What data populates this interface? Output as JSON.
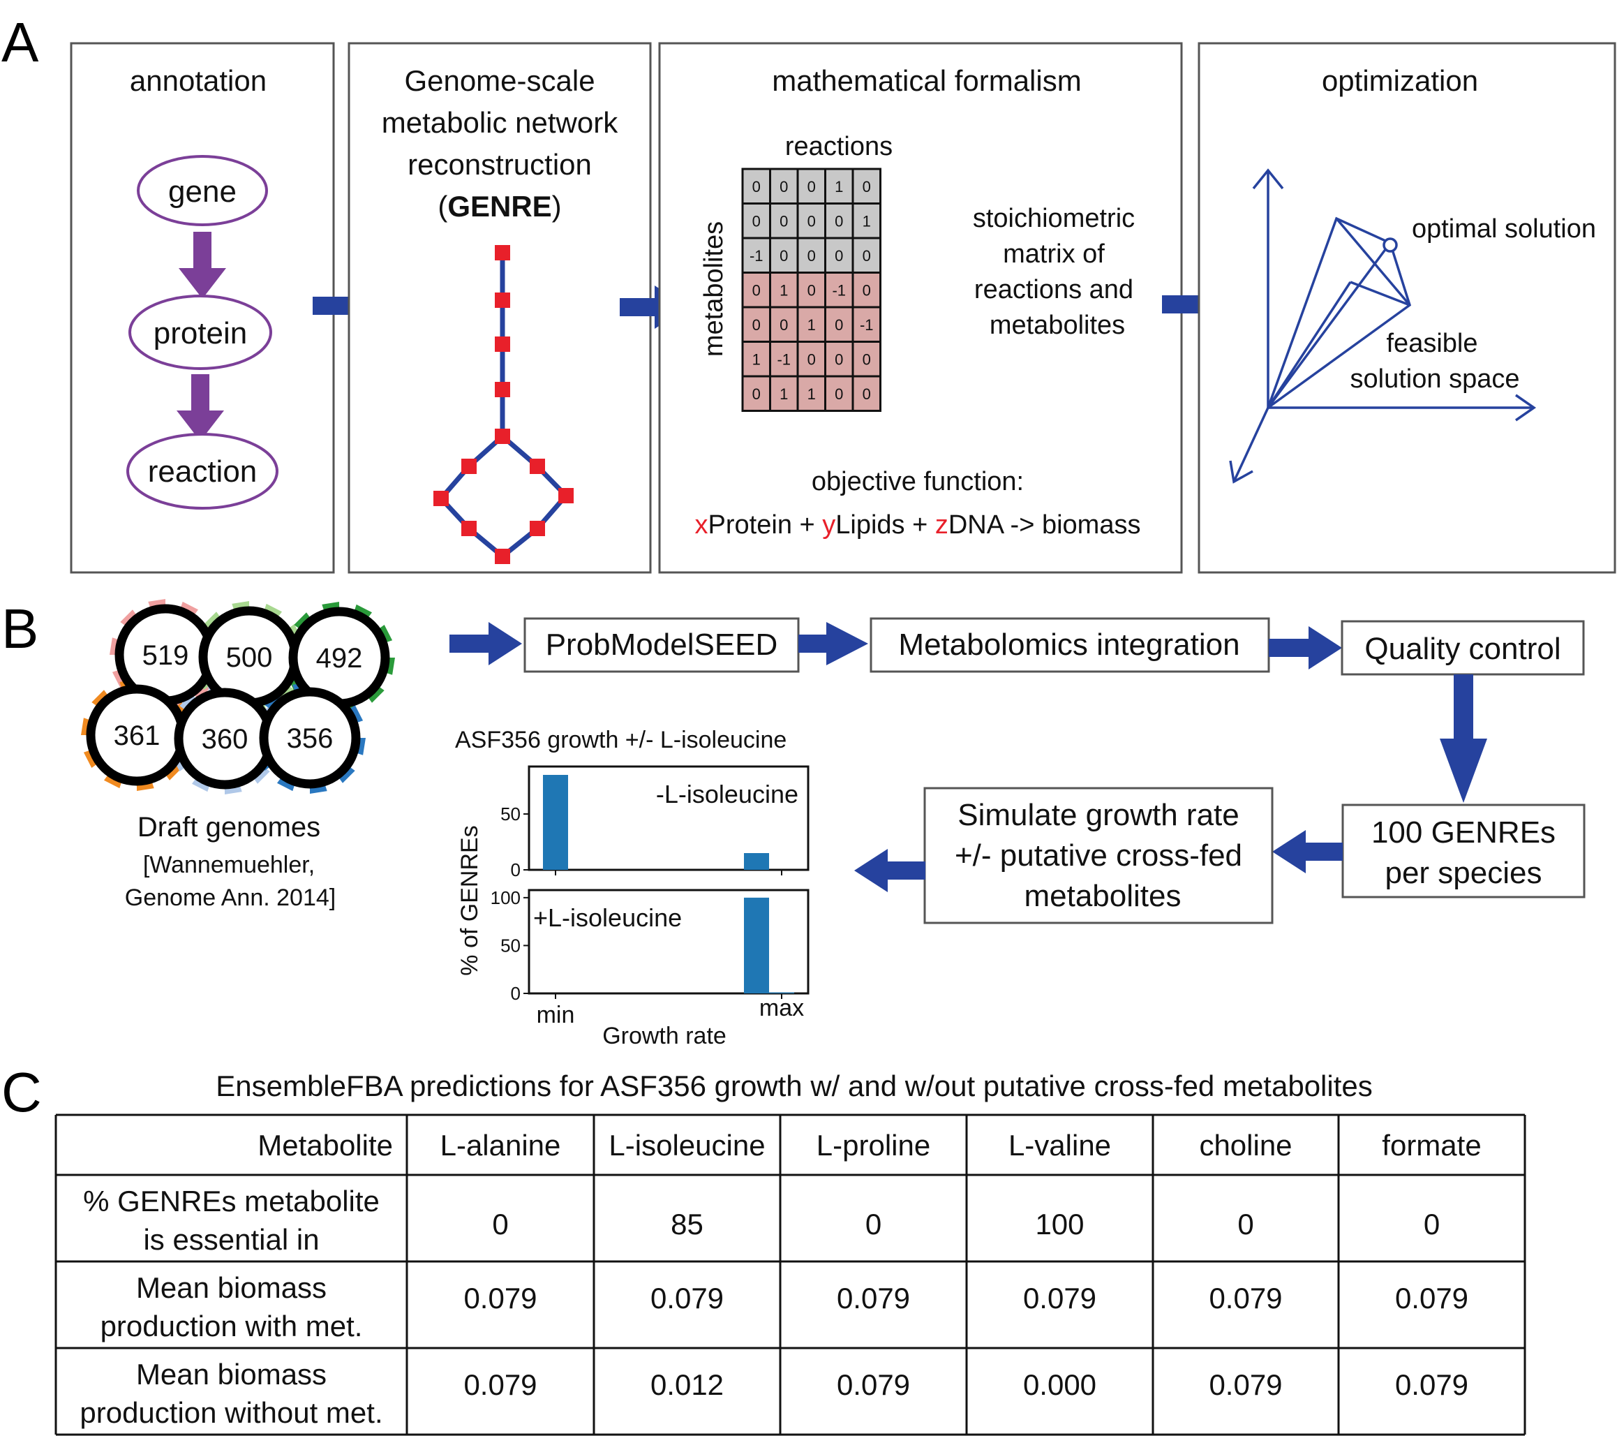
{
  "panel_labels": {
    "a": "A",
    "b": "B",
    "c": "C"
  },
  "panelA": {
    "annotation": {
      "title": "annotation",
      "gene": "gene",
      "protein": "protein",
      "reaction": "reaction"
    },
    "genre": {
      "line1": "Genome-scale",
      "line2": "metabolic network",
      "line3": "reconstruction",
      "line4_open": "(",
      "line4_bold": "GENRE",
      "line4_close": ")"
    },
    "math": {
      "title": "mathematical formalism",
      "reactions_label": "reactions",
      "metabolites_label": "metabolites",
      "matrix": [
        [
          "0",
          "0",
          "0",
          "1",
          "0"
        ],
        [
          "0",
          "0",
          "0",
          "0",
          "1"
        ],
        [
          "-1",
          "0",
          "0",
          "0",
          "0"
        ],
        [
          "0",
          "1",
          "0",
          "-1",
          "0"
        ],
        [
          "0",
          "0",
          "1",
          "0",
          "-1"
        ],
        [
          "1",
          "-1",
          "0",
          "0",
          "0"
        ],
        [
          "0",
          "1",
          "1",
          "0",
          "0"
        ]
      ],
      "matrix_row_colors": [
        "#c8c8c8",
        "#c8c8c8",
        "#c8c8c8",
        "#d9a9a7",
        "#d9a9a7",
        "#d9a9a7",
        "#d9a9a7"
      ],
      "desc": [
        "stoichiometric",
        "matrix of",
        "reactions and",
        "metabolites"
      ],
      "objective_label": "objective function:",
      "objective": {
        "x": "x",
        "protein": "Protein + ",
        "y": "y",
        "lipids": "Lipids + ",
        "z": "z",
        "dna": "DNA -> biomass"
      }
    },
    "optimization": {
      "title": "optimization",
      "optimal": "optimal solution",
      "feasible1": "feasible",
      "feasible2": "solution space"
    }
  },
  "panelB": {
    "genomes": [
      {
        "id": "519",
        "color": "#f0a0a0"
      },
      {
        "id": "500",
        "color": "#a8d890"
      },
      {
        "id": "492",
        "color": "#2a9a3a"
      },
      {
        "id": "361",
        "color": "#f08a20"
      },
      {
        "id": "360",
        "color": "#b0c8e8"
      },
      {
        "id": "356",
        "color": "#2a78c0"
      }
    ],
    "draft_label": "Draft genomes",
    "citation1": "[Wannemuehler,",
    "citation2": "Genome Ann. 2014]",
    "steps": {
      "probmodel": "ProbModelSEED",
      "metabolomics": "Metabolomics integration",
      "qc": "Quality control",
      "genres1": "100 GENREs",
      "genres2": "per species",
      "simulate1": "Simulate growth rate",
      "simulate2": "+/- putative cross-fed",
      "simulate3": "metabolites"
    }
  },
  "chart_data": {
    "type": "bar",
    "title": "ASF356 growth +/- L-isoleucine",
    "xlabel": "Growth rate",
    "ylabel": "% of GENREs",
    "x_tick_labels": [
      "min",
      "max"
    ],
    "color": "#1f77b4",
    "panels": [
      {
        "name": "-L-isoleucine",
        "ylim": [
          0,
          90
        ],
        "yticks": [
          "50",
          "0"
        ],
        "bars": [
          {
            "bin": 0,
            "value": 85
          },
          {
            "bin": 8,
            "value": 15
          }
        ]
      },
      {
        "name": "+L-isoleucine",
        "ylim": [
          0,
          105
        ],
        "yticks": [
          "100",
          "50",
          "0"
        ],
        "bars": [
          {
            "bin": 8,
            "value": 100
          },
          {
            "bin": 9,
            "value": 1
          }
        ]
      }
    ],
    "bins": 10
  },
  "panelC": {
    "title": "EnsembleFBA predictions for ASF356 growth w/ and w/out putative cross-fed metabolites",
    "header": {
      "label": "Metabolite",
      "cols": [
        "L-alanine",
        "L-isoleucine",
        "L-proline",
        "L-valine",
        "choline",
        "formate"
      ]
    },
    "rows": [
      {
        "label1": "% GENREs metabolite",
        "label2": "is essential in",
        "values": [
          "0",
          "85",
          "0",
          "100",
          "0",
          "0"
        ]
      },
      {
        "label1": "Mean biomass",
        "label2": "production with met.",
        "values": [
          "0.079",
          "0.079",
          "0.079",
          "0.079",
          "0.079",
          "0.079"
        ]
      },
      {
        "label1": "Mean biomass",
        "label2": "production without met.",
        "values": [
          "0.079",
          "0.012",
          "0.079",
          "0.000",
          "0.079",
          "0.079"
        ]
      }
    ]
  }
}
